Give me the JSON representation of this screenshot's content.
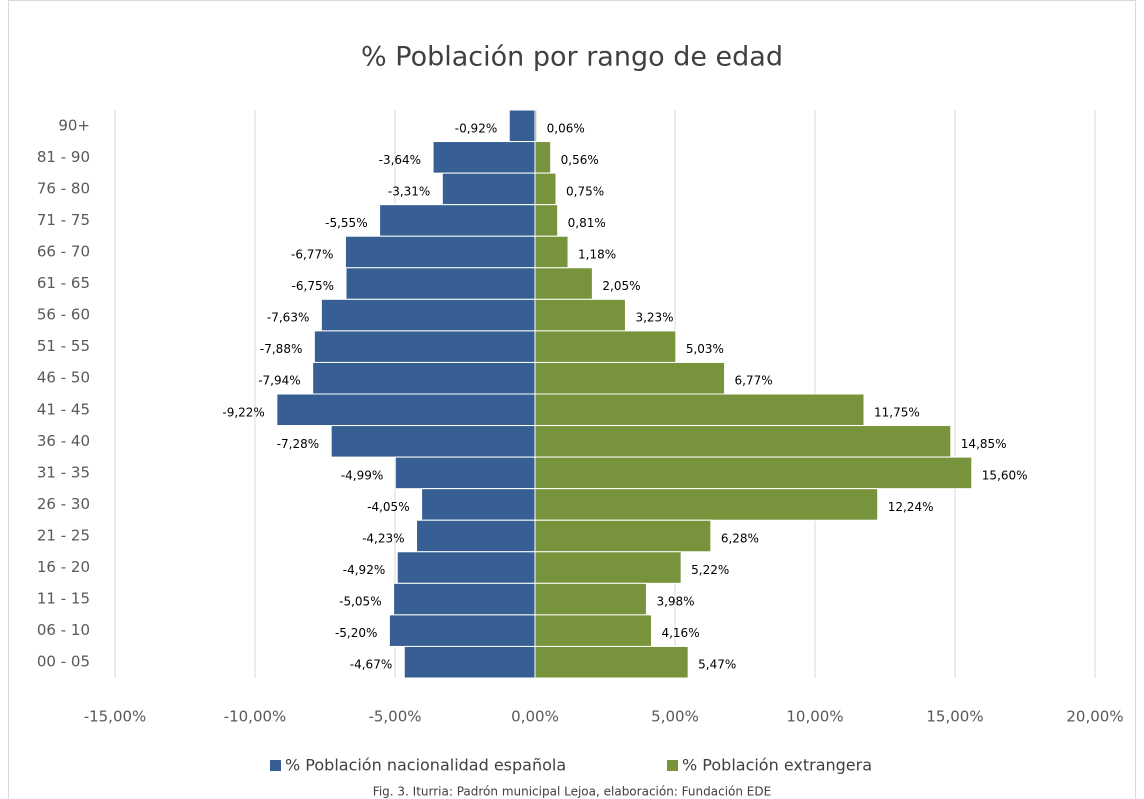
{
  "chart_data": {
    "type": "bar",
    "orientation": "horizontal",
    "stacked": false,
    "title": "% Población por rango de edad",
    "caption": "Fig. 3. Iturria: Padrón municipal Lejoa, elaboración: Fundación EDE",
    "categories": [
      "90+",
      "81 - 90",
      "76 - 80",
      "71 - 75",
      "66 - 70",
      "61 - 65",
      "56 - 60",
      "51 - 55",
      "46 - 50",
      "41 - 45",
      "36 - 40",
      "31 - 35",
      "26 - 30",
      "21 - 25",
      "16 - 20",
      "11 - 15",
      "06 - 10",
      "00 - 05"
    ],
    "series": [
      {
        "name": "% Población nacionalidad española",
        "color": "#375f94",
        "values": [
          -0.92,
          -3.64,
          -3.31,
          -5.55,
          -6.77,
          -6.75,
          -7.63,
          -7.88,
          -7.94,
          -9.22,
          -7.28,
          -4.99,
          -4.05,
          -4.23,
          -4.92,
          -5.05,
          -5.2,
          -4.67
        ],
        "value_labels": [
          "-0,92%",
          "-3,64%",
          "-3,31%",
          "-5,55%",
          "-6,77%",
          "-6,75%",
          "-7,63%",
          "-7,88%",
          "-7,94%",
          "-9,22%",
          "-7,28%",
          "-4,99%",
          "-4,05%",
          "-4,23%",
          "-4,92%",
          "-5,05%",
          "-5,20%",
          "-4,67%"
        ]
      },
      {
        "name": "% Población extrangera",
        "color": "#77933c",
        "values": [
          0.06,
          0.56,
          0.75,
          0.81,
          1.18,
          2.05,
          3.23,
          5.03,
          6.77,
          11.75,
          14.85,
          15.6,
          12.24,
          6.28,
          5.22,
          3.98,
          4.16,
          5.47
        ],
        "value_labels": [
          "0,06%",
          "0,56%",
          "0,75%",
          "0,81%",
          "1,18%",
          "2,05%",
          "3,23%",
          "5,03%",
          "6,77%",
          "11,75%",
          "14,85%",
          "15,60%",
          "12,24%",
          "6,28%",
          "5,22%",
          "3,98%",
          "4,16%",
          "5,47%"
        ]
      }
    ],
    "xlim": [
      -15,
      20
    ],
    "xticks": [
      {
        "value": -15,
        "label": "-15,00%"
      },
      {
        "value": -10,
        "label": "-10,00%"
      },
      {
        "value": -5,
        "label": "-5,00%"
      },
      {
        "value": 0,
        "label": "0,00%"
      },
      {
        "value": 5,
        "label": "5,00%"
      },
      {
        "value": 10,
        "label": "10,00%"
      },
      {
        "value": 15,
        "label": "15,00%"
      },
      {
        "value": 20,
        "label": "20,00%"
      }
    ],
    "grid": true,
    "legend": "bottom"
  }
}
